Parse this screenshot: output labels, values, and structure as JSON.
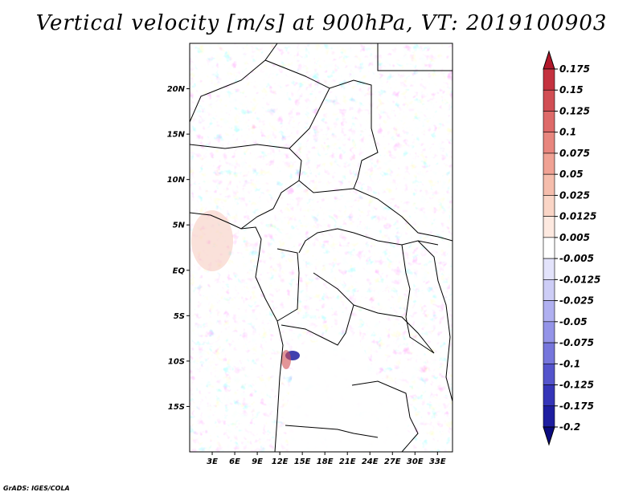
{
  "title": "Vertical velocity [m/s] at 900hPa, VT: 2019100903",
  "credit": "GrADS: IGES/COLA",
  "map": {
    "lon_labels": [
      "3E",
      "6E",
      "9E",
      "12E",
      "15E",
      "18E",
      "21E",
      "24E",
      "27E",
      "30E",
      "33E"
    ],
    "lon_values": [
      3,
      6,
      9,
      12,
      15,
      18,
      21,
      24,
      27,
      30,
      33
    ],
    "lat_labels": [
      "20N",
      "15N",
      "10N",
      "5N",
      "EQ",
      "5S",
      "10S",
      "15S"
    ],
    "lat_values": [
      20,
      15,
      10,
      5,
      0,
      -5,
      -10,
      -15
    ],
    "lon_range": [
      0,
      35
    ],
    "lat_range": [
      -20,
      25
    ]
  },
  "colorbar": {
    "labels": [
      "0.175",
      "0.15",
      "0.125",
      "0.1",
      "0.075",
      "0.05",
      "0.025",
      "0.0125",
      "0.005",
      "-0.005",
      "-0.0125",
      "-0.025",
      "-0.05",
      "-0.075",
      "-0.1",
      "-0.125",
      "-0.175",
      "-0.2"
    ],
    "colors": [
      "#b2182b",
      "#c4323f",
      "#d14e54",
      "#de6a69",
      "#e8867e",
      "#f0a294",
      "#f5bdac",
      "#fad5c6",
      "#fde9e0",
      "#ffffff",
      "#e3e3fb",
      "#cdcdf6",
      "#b0b0f0",
      "#9494e8",
      "#7676dc",
      "#5454cc",
      "#3535b8",
      "#1e1ea0",
      "#0b0b80"
    ]
  }
}
